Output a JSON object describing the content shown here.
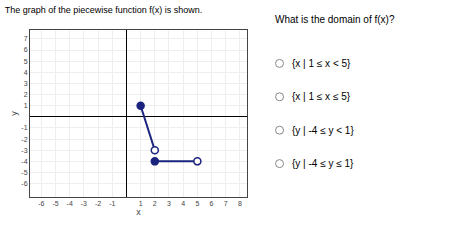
{
  "chart_data": {
    "type": "line",
    "title": "The graph of the piecewise function f(x) is shown.",
    "annotations": [
      "What is the domain of f(x)?",
      "{x | 1 ≤ x < 5}",
      "{x | 1 ≤ x ≤ 5}",
      "{y | -4 ≤ y < 1}",
      "{y | -4 ≤ y ≤ 1}"
    ],
    "xlabel": "x",
    "ylabel": "y",
    "series": [
      {
        "x": [
          1,
          2
        ],
        "values": [
          1,
          -3
        ],
        "color": "#1a237e",
        "marker": "circle"
      },
      {
        "x": [
          2,
          5
        ],
        "values": [
          -4,
          -4
        ],
        "color": "#1a237e",
        "marker": "circle"
      }
    ],
    "xlim": [
      -6.8,
      8.5
    ],
    "ylim": [
      -7.2,
      7.8
    ],
    "xticks": [
      -6,
      -5,
      -4,
      -3,
      -2,
      -1,
      1,
      2,
      3,
      4,
      5,
      6,
      7,
      8
    ],
    "yticks": [
      -6,
      -5,
      -4,
      -3,
      -2,
      -1,
      1,
      2,
      3,
      4,
      5,
      6,
      7
    ],
    "grid": true
  }
}
